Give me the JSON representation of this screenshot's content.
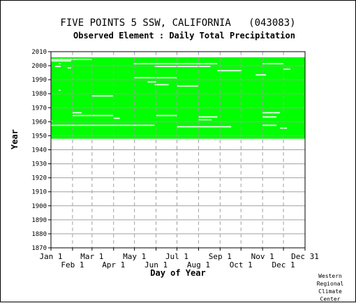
{
  "chart_data": {
    "type": "heatmap",
    "title": "FIVE POINTS 5 SSW, CALIFORNIA   (043083)",
    "subtitle": "Observed Element : Daily Total Precipitation",
    "xlabel": "Day of Year",
    "ylabel": "Year",
    "credit": [
      "Western",
      "Regional",
      "Climate",
      "Center"
    ],
    "ylim": [
      1870,
      2010
    ],
    "y_ticks": [
      1870,
      1880,
      1890,
      1900,
      1910,
      1920,
      1930,
      1940,
      1950,
      1960,
      1970,
      1980,
      1990,
      2000,
      2010
    ],
    "xlim": [
      1,
      366
    ],
    "x_ticks_upper": [
      {
        "label": "Jan 1",
        "day": 1
      },
      {
        "label": "Mar 1",
        "day": 60
      },
      {
        "label": "May 1",
        "day": 121
      },
      {
        "label": "Jul 1",
        "day": 182
      },
      {
        "label": "Sep 1",
        "day": 244
      },
      {
        "label": "Nov 1",
        "day": 305
      },
      {
        "label": "Dec 31",
        "day": 366
      }
    ],
    "x_ticks_lower": [
      {
        "label": "Feb 1",
        "day": 32
      },
      {
        "label": "Apr 1",
        "day": 91
      },
      {
        "label": "Jun 1",
        "day": 152
      },
      {
        "label": "Aug 1",
        "day": 213
      },
      {
        "label": "Oct 1",
        "day": 274
      },
      {
        "label": "Dec 1",
        "day": 335
      }
    ],
    "grid": "dashed vertical at month starts, solid horizontal at decades",
    "data_color": "#00ff00",
    "coverage": {
      "description": "Days of year with observed data, by year",
      "start_year": 1948,
      "end_year": 2005,
      "first_year_start_day": 1,
      "last_year_end_day": 366,
      "gaps": [
        {
          "year": 2004,
          "from": 1,
          "to": 60
        },
        {
          "year": 2003,
          "from": 1,
          "to": 30
        },
        {
          "year": 2001,
          "from": 12,
          "to": 15
        },
        {
          "year": 2001,
          "from": 120,
          "to": 240
        },
        {
          "year": 2001,
          "from": 305,
          "to": 335
        },
        {
          "year": 1999,
          "from": 7,
          "to": 15
        },
        {
          "year": 1999,
          "from": 150,
          "to": 230
        },
        {
          "year": 1998,
          "from": 25,
          "to": 30
        },
        {
          "year": 1997,
          "from": 335,
          "to": 345
        },
        {
          "year": 1996,
          "from": 240,
          "to": 275
        },
        {
          "year": 1993,
          "from": 295,
          "to": 310
        },
        {
          "year": 1991,
          "from": 120,
          "to": 182
        },
        {
          "year": 1988,
          "from": 140,
          "to": 152
        },
        {
          "year": 1986,
          "from": 150,
          "to": 170
        },
        {
          "year": 1985,
          "from": 182,
          "to": 212
        },
        {
          "year": 1982,
          "from": 12,
          "to": 15
        },
        {
          "year": 1978,
          "from": 60,
          "to": 90
        },
        {
          "year": 1966,
          "from": 32,
          "to": 45
        },
        {
          "year": 1964,
          "from": 32,
          "to": 90
        },
        {
          "year": 1963,
          "from": 305,
          "to": 325
        },
        {
          "year": 1961,
          "from": 213,
          "to": 232
        },
        {
          "year": 1960,
          "from": 1,
          "to": 3
        },
        {
          "year": 1957,
          "from": 1,
          "to": 150
        },
        {
          "year": 1957,
          "from": 305,
          "to": 325
        },
        {
          "year": 1956,
          "from": 182,
          "to": 260
        },
        {
          "year": 1955,
          "from": 330,
          "to": 340
        },
        {
          "year": 1966,
          "from": 305,
          "to": 330
        },
        {
          "year": 1964,
          "from": 152,
          "to": 182
        },
        {
          "year": 1963,
          "from": 213,
          "to": 240
        },
        {
          "year": 1962,
          "from": 91,
          "to": 100
        }
      ]
    }
  }
}
